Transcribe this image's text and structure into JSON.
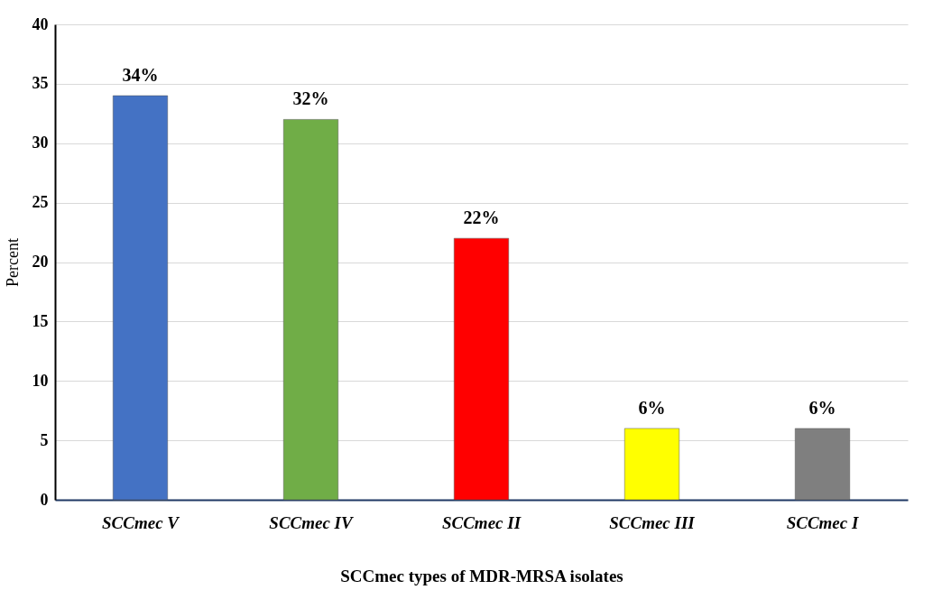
{
  "chart_data": {
    "type": "bar",
    "xlabel": "SCCmec types of MDR-MRSA isolates",
    "ylabel": "Percent",
    "categories": [
      "SCCmec V",
      "SCCmec IV",
      "SCCmec II",
      "SCCmec III",
      "SCCmec I"
    ],
    "values": [
      34,
      32,
      22,
      6,
      6
    ],
    "colors": [
      "#4472c4",
      "#70ad47",
      "#ff0000",
      "#ffff00",
      "#7f7f7f"
    ],
    "value_labels": [
      "34%",
      "32%",
      "22%",
      "6%",
      "6%"
    ],
    "ylim": [
      0,
      40
    ],
    "yticks": [
      0,
      5,
      10,
      15,
      20,
      25,
      30,
      35,
      40
    ],
    "grid": "y"
  }
}
